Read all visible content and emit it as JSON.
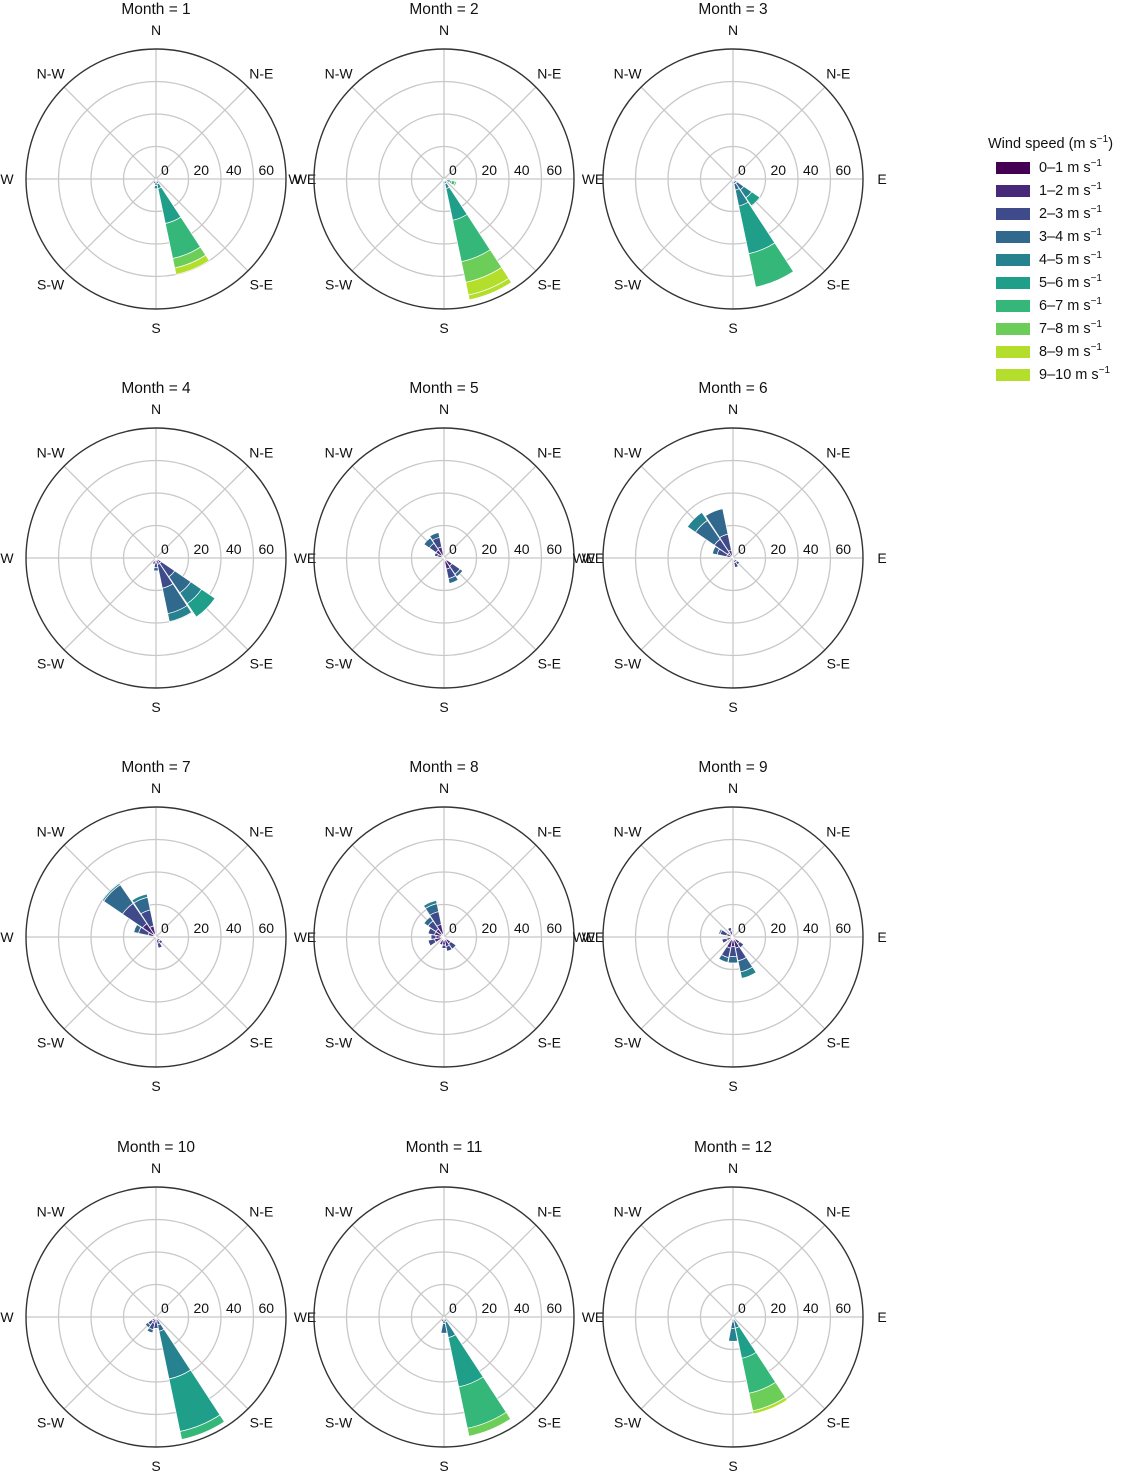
{
  "chart_data": {
    "type": "windrose",
    "facet_label": "Month",
    "direction_labels": [
      "N",
      "N-E",
      "E",
      "S-E",
      "S",
      "S-W",
      "W",
      "N-W"
    ],
    "radial_ticks": [
      0,
      20,
      40,
      60
    ],
    "rmax": 80,
    "sector_width_deg": 22.5,
    "legend": {
      "title": "Wind speed (m s",
      "title_sup": "−1",
      "title_close": ")",
      "unit": "m s",
      "unit_sup": "−1",
      "bins": [
        "0–1",
        "1–2",
        "2–3",
        "3–4",
        "4–5",
        "5–6",
        "6–7",
        "7–8",
        "8–9",
        "9–10"
      ],
      "colors": [
        "#440154",
        "#482878",
        "#3e4a89",
        "#31688e",
        "#26828e",
        "#1f9e89",
        "#35b779",
        "#6dcd59",
        "#b4de2c",
        "#b4de2c"
      ]
    },
    "panels": [
      {
        "title": "Month = 1",
        "direction_text": {
          "W": "W",
          "E": "WE"
        },
        "sectors": [
          {
            "dir": 157.5,
            "values": [
              0,
              0,
              1,
              2,
              3,
              22,
              22,
              6,
              4,
              0
            ]
          },
          {
            "dir": 180,
            "values": [
              0,
              0,
              1,
              3,
              2,
              0,
              0,
              0,
              0,
              0
            ]
          },
          {
            "dir": 202.5,
            "values": [
              0,
              0,
              1,
              2,
              0,
              0,
              0,
              0,
              0,
              0
            ]
          }
        ]
      },
      {
        "title": "Month = 2",
        "direction_text": {
          "W": "W",
          "E": "WE"
        },
        "sectors": [
          {
            "dir": 157.5,
            "values": [
              0,
              0,
              1,
              2,
              3,
              20,
              26,
              13,
              8,
              3
            ]
          },
          {
            "dir": 112.5,
            "values": [
              0,
              0,
              0,
              2,
              2,
              1,
              2,
              1,
              0,
              0
            ]
          },
          {
            "dir": 180,
            "values": [
              0,
              0,
              1,
              2,
              0,
              0,
              0,
              0,
              0,
              0
            ]
          },
          {
            "dir": 202.5,
            "values": [
              0,
              0,
              1,
              1,
              0,
              0,
              0,
              0,
              0,
              0
            ]
          }
        ]
      },
      {
        "title": "Month = 3",
        "direction_text": {
          "W": "",
          "E": "E"
        },
        "sectors": [
          {
            "dir": 157.5,
            "values": [
              0,
              1,
              2,
              4,
              10,
              30,
              21,
              0,
              0,
              0
            ]
          },
          {
            "dir": 135,
            "values": [
              0,
              1,
              2,
              5,
              6,
              6,
              0,
              0,
              0,
              0
            ]
          },
          {
            "dir": 180,
            "values": [
              0,
              0,
              1,
              2,
              0,
              0,
              0,
              0,
              0,
              0
            ]
          }
        ]
      },
      {
        "title": "Month = 4",
        "direction_text": {
          "W": "W",
          "E": "WE"
        },
        "sectors": [
          {
            "dir": 157.5,
            "values": [
              1,
              3,
              15,
              16,
              5,
              0,
              0,
              0,
              0,
              0
            ]
          },
          {
            "dir": 135,
            "values": [
              1,
              3,
              10,
              12,
              8,
              10,
              0,
              0,
              0,
              0
            ]
          },
          {
            "dir": 180,
            "values": [
              1,
              2,
              3,
              2,
              0,
              0,
              0,
              0,
              0,
              0
            ]
          },
          {
            "dir": 202.5,
            "values": [
              1,
              1,
              2,
              0,
              0,
              0,
              0,
              0,
              0,
              0
            ]
          }
        ]
      },
      {
        "title": "Month = 5",
        "direction_text": {
          "W": "",
          "E": "WE"
        },
        "sectors": [
          {
            "dir": 337.5,
            "values": [
              2,
              5,
              6,
              3,
              0,
              0,
              0,
              0,
              0,
              0
            ]
          },
          {
            "dir": 315,
            "values": [
              2,
              4,
              5,
              4,
              0,
              0,
              0,
              0,
              0,
              0
            ]
          },
          {
            "dir": 157.5,
            "values": [
              2,
              5,
              6,
              3,
              0,
              0,
              0,
              0,
              0,
              0
            ]
          },
          {
            "dir": 135,
            "values": [
              2,
              4,
              6,
              2,
              0,
              0,
              0,
              0,
              0,
              0
            ]
          },
          {
            "dir": 292.5,
            "values": [
              1,
              3,
              2,
              0,
              0,
              0,
              0,
              0,
              0,
              0
            ]
          }
        ]
      },
      {
        "title": "Month = 6",
        "direction_text": {
          "W": "WE",
          "E": "E"
        },
        "sectors": [
          {
            "dir": 337.5,
            "values": [
              1,
              4,
              10,
              16,
              0,
              0,
              0,
              0,
              0,
              0
            ]
          },
          {
            "dir": 315,
            "values": [
              1,
              3,
              10,
              14,
              6,
              0,
              0,
              0,
              0,
              0
            ]
          },
          {
            "dir": 292.5,
            "values": [
              1,
              3,
              6,
              3,
              0,
              0,
              0,
              0,
              0,
              0
            ]
          },
          {
            "dir": 157.5,
            "values": [
              1,
              2,
              3,
              0,
              0,
              0,
              0,
              0,
              0,
              0
            ]
          },
          {
            "dir": 135,
            "values": [
              1,
              2,
              2,
              0,
              0,
              0,
              0,
              0,
              0,
              0
            ]
          }
        ]
      },
      {
        "title": "Month = 7",
        "direction_text": {
          "W": "W",
          "E": "WE"
        },
        "sectors": [
          {
            "dir": 315,
            "values": [
              2,
              8,
              15,
              14,
              1,
              0,
              0,
              0,
              0,
              0
            ]
          },
          {
            "dir": 337.5,
            "values": [
              2,
              5,
              10,
              8,
              2,
              0,
              0,
              0,
              0,
              0
            ]
          },
          {
            "dir": 292.5,
            "values": [
              1,
              4,
              6,
              3,
              0,
              0,
              0,
              0,
              0,
              0
            ]
          },
          {
            "dir": 157.5,
            "values": [
              1,
              3,
              3,
              0,
              0,
              0,
              0,
              0,
              0,
              0
            ]
          },
          {
            "dir": 135,
            "values": [
              1,
              2,
              2,
              0,
              0,
              0,
              0,
              0,
              0,
              0
            ]
          }
        ]
      },
      {
        "title": "Month = 8",
        "direction_text": {
          "W": "",
          "E": "WE"
        },
        "sectors": [
          {
            "dir": 337.5,
            "values": [
              2,
              6,
              8,
              5,
              2,
              0,
              0,
              0,
              0,
              0
            ]
          },
          {
            "dir": 315,
            "values": [
              2,
              4,
              6,
              3,
              0,
              0,
              0,
              0,
              0,
              0
            ]
          },
          {
            "dir": 292.5,
            "values": [
              2,
              4,
              4,
              0,
              0,
              0,
              0,
              0,
              0,
              0
            ]
          },
          {
            "dir": 270,
            "values": [
              2,
              3,
              3,
              0,
              0,
              0,
              0,
              0,
              0,
              0
            ]
          },
          {
            "dir": 247.5,
            "values": [
              2,
              4,
              4,
              0,
              0,
              0,
              0,
              0,
              0,
              0
            ]
          },
          {
            "dir": 157.5,
            "values": [
              2,
              4,
              3,
              0,
              0,
              0,
              0,
              0,
              0,
              0
            ]
          },
          {
            "dir": 135,
            "values": [
              2,
              3,
              4,
              0,
              0,
              0,
              0,
              0,
              0,
              0
            ]
          },
          {
            "dir": 202.5,
            "values": [
              2,
              3,
              0,
              0,
              0,
              0,
              0,
              0,
              0,
              0
            ]
          },
          {
            "dir": 180,
            "values": [
              2,
              3,
              2,
              0,
              0,
              0,
              0,
              0,
              0,
              0
            ]
          }
        ]
      },
      {
        "title": "Month = 9",
        "direction_text": {
          "W": "WE",
          "E": "E"
        },
        "sectors": [
          {
            "dir": 157.5,
            "values": [
              2,
              5,
              8,
              7,
              4,
              0,
              0,
              0,
              0,
              0
            ]
          },
          {
            "dir": 180,
            "values": [
              2,
              4,
              6,
              4,
              0,
              0,
              0,
              0,
              0,
              0
            ]
          },
          {
            "dir": 202.5,
            "values": [
              2,
              5,
              6,
              3,
              0,
              0,
              0,
              0,
              0,
              0
            ]
          },
          {
            "dir": 135,
            "values": [
              2,
              3,
              3,
              0,
              0,
              0,
              0,
              0,
              0,
              0
            ]
          },
          {
            "dir": 247.5,
            "values": [
              1,
              3,
              3,
              0,
              0,
              0,
              0,
              0,
              0,
              0
            ]
          },
          {
            "dir": 292.5,
            "values": [
              1,
              3,
              4,
              1,
              0,
              0,
              0,
              0,
              0,
              0
            ]
          },
          {
            "dir": 337.5,
            "values": [
              1,
              3,
              2,
              0,
              0,
              0,
              0,
              0,
              0,
              0
            ]
          }
        ]
      },
      {
        "title": "Month = 10",
        "direction_text": {
          "W": "W",
          "E": "WE"
        },
        "sectors": [
          {
            "dir": 157.5,
            "values": [
              0,
              2,
              3,
              4,
              30,
              33,
              5,
              0,
              0,
              0
            ]
          },
          {
            "dir": 202.5,
            "values": [
              1,
              3,
              4,
              2,
              0,
              0,
              0,
              0,
              0,
              0
            ]
          },
          {
            "dir": 180,
            "values": [
              1,
              2,
              4,
              0,
              0,
              0,
              0,
              0,
              0,
              0
            ]
          },
          {
            "dir": 225,
            "values": [
              1,
              2,
              3,
              2,
              0,
              0,
              0,
              0,
              0,
              0
            ]
          }
        ]
      },
      {
        "title": "Month = 11",
        "direction_text": {
          "W": "",
          "E": "WE"
        },
        "sectors": [
          {
            "dir": 157.5,
            "values": [
              0,
              0,
              1,
              2,
              10,
              31,
              26,
              5,
              0,
              0
            ]
          },
          {
            "dir": 180,
            "values": [
              0,
              1,
              3,
              6,
              0,
              0,
              0,
              0,
              0,
              0
            ]
          },
          {
            "dir": 202.5,
            "values": [
              0,
              1,
              2,
              0,
              0,
              0,
              0,
              0,
              0,
              0
            ]
          }
        ]
      },
      {
        "title": "Month = 12",
        "direction_text": {
          "W": "",
          "E": "E"
        },
        "sectors": [
          {
            "dir": 157.5,
            "values": [
              0,
              0,
              0,
              2,
              5,
              19,
              22,
              11,
              2,
              0
            ]
          },
          {
            "dir": 180,
            "values": [
              0,
              1,
              2,
              4,
              8,
              0,
              0,
              0,
              0,
              0
            ]
          },
          {
            "dir": 202.5,
            "values": [
              0,
              0,
              1,
              1,
              0,
              0,
              0,
              0,
              0,
              0
            ]
          }
        ]
      }
    ]
  }
}
